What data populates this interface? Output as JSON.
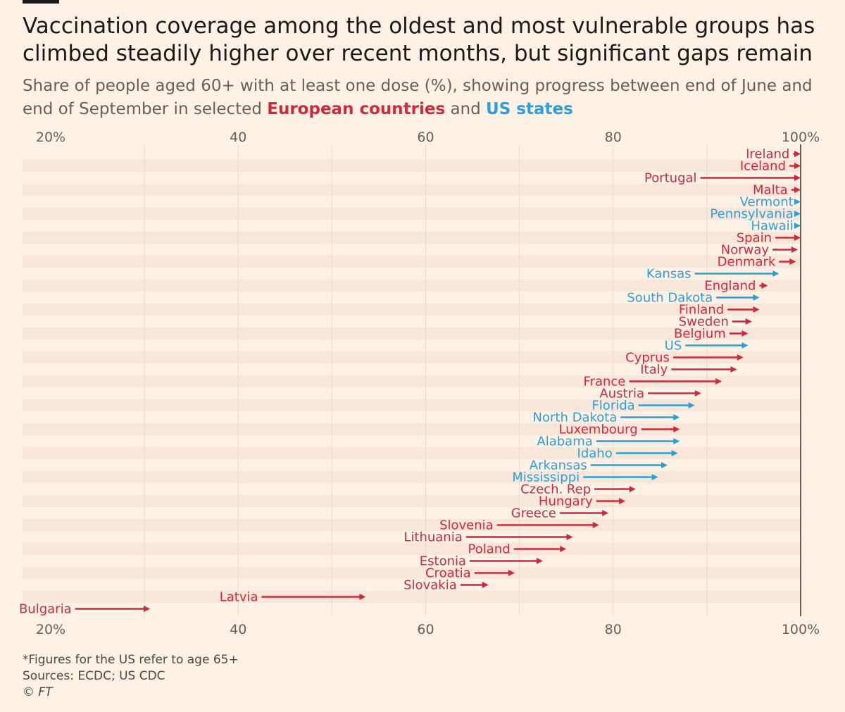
{
  "title": "Vaccination coverage among the oldest and most vulnerable groups has climbed steadily higher over recent months, but significant gaps remain",
  "subtitle": {
    "prefix": "Share of people aged 60+ with at least one dose (%), showing progress between end of June and end of September in selected",
    "eu_label": "European countries",
    "middle": "and",
    "us_label": "US states"
  },
  "colors": {
    "eu": "#cc2a3c",
    "us": "#2d9fd8",
    "background": "#fdf1e6",
    "band": "#f8e6d8"
  },
  "chart_data": {
    "type": "arrow",
    "xlim": [
      20,
      100
    ],
    "tick_values": [
      20,
      40,
      60,
      80,
      100
    ],
    "tick_labels": [
      "20%",
      "40",
      "60",
      "80",
      "100%"
    ],
    "series": [
      {
        "label": "Ireland",
        "group": "eu",
        "start": 99.2,
        "end": 100
      },
      {
        "label": "Iceland",
        "group": "eu",
        "start": 98.8,
        "end": 100
      },
      {
        "label": "Portugal",
        "group": "eu",
        "start": 89.3,
        "end": 100
      },
      {
        "label": "Malta",
        "group": "eu",
        "start": 99.0,
        "end": 100
      },
      {
        "label": "Vermont",
        "group": "us",
        "start": 99.6,
        "end": 100
      },
      {
        "label": "Pennsylvania",
        "group": "us",
        "start": 99.6,
        "end": 100
      },
      {
        "label": "Hawaii",
        "group": "us",
        "start": 99.6,
        "end": 100
      },
      {
        "label": "Spain",
        "group": "eu",
        "start": 97.3,
        "end": 100
      },
      {
        "label": "Norway",
        "group": "eu",
        "start": 97.0,
        "end": 99.7
      },
      {
        "label": "Denmark",
        "group": "eu",
        "start": 97.7,
        "end": 99.5
      },
      {
        "label": "Kansas",
        "group": "us",
        "start": 88.7,
        "end": 97.7
      },
      {
        "label": "England",
        "group": "eu",
        "start": 95.6,
        "end": 96.5
      },
      {
        "label": "South Dakota",
        "group": "us",
        "start": 91.0,
        "end": 95.6
      },
      {
        "label": "Finland",
        "group": "eu",
        "start": 92.2,
        "end": 95.6
      },
      {
        "label": "Sweden",
        "group": "eu",
        "start": 92.7,
        "end": 94.8
      },
      {
        "label": "Belgium",
        "group": "eu",
        "start": 92.4,
        "end": 94.4
      },
      {
        "label": "US",
        "group": "us",
        "start": 87.7,
        "end": 94.4
      },
      {
        "label": "Cyprus",
        "group": "eu",
        "start": 86.4,
        "end": 93.9
      },
      {
        "label": "Italy",
        "group": "eu",
        "start": 86.2,
        "end": 93.2
      },
      {
        "label": "France",
        "group": "eu",
        "start": 81.7,
        "end": 91.6
      },
      {
        "label": "Austria",
        "group": "eu",
        "start": 83.7,
        "end": 89.4
      },
      {
        "label": "Florida",
        "group": "us",
        "start": 82.7,
        "end": 88.7
      },
      {
        "label": "North Dakota",
        "group": "us",
        "start": 80.8,
        "end": 87.1
      },
      {
        "label": "Luxembourg",
        "group": "eu",
        "start": 83.0,
        "end": 87.1
      },
      {
        "label": "Alabama",
        "group": "us",
        "start": 78.2,
        "end": 87.1
      },
      {
        "label": "Idaho",
        "group": "us",
        "start": 80.3,
        "end": 86.9
      },
      {
        "label": "Arkansas",
        "group": "us",
        "start": 77.6,
        "end": 85.8
      },
      {
        "label": "Mississippi",
        "group": "us",
        "start": 76.8,
        "end": 84.8
      },
      {
        "label": "Czech. Rep",
        "group": "eu",
        "start": 78.0,
        "end": 82.4
      },
      {
        "label": "Hungary",
        "group": "eu",
        "start": 78.2,
        "end": 81.3
      },
      {
        "label": "Greece",
        "group": "eu",
        "start": 74.3,
        "end": 79.5
      },
      {
        "label": "Slovenia",
        "group": "eu",
        "start": 67.6,
        "end": 78.5
      },
      {
        "label": "Lithuania",
        "group": "eu",
        "start": 64.3,
        "end": 75.7
      },
      {
        "label": "Poland",
        "group": "eu",
        "start": 69.4,
        "end": 75.0
      },
      {
        "label": "Estonia",
        "group": "eu",
        "start": 64.7,
        "end": 72.5
      },
      {
        "label": "Croatia",
        "group": "eu",
        "start": 65.2,
        "end": 69.5
      },
      {
        "label": "Slovakia",
        "group": "eu",
        "start": 63.7,
        "end": 66.7
      },
      {
        "label": "Latvia",
        "group": "eu",
        "start": 42.5,
        "end": 53.6
      },
      {
        "label": "Bulgaria",
        "group": "eu",
        "start": 22.6,
        "end": 30.6
      }
    ]
  },
  "footer": {
    "note": "*Figures for the US refer to age 65+",
    "sources": "Sources: ECDC; US CDC",
    "credit": "© FT"
  }
}
